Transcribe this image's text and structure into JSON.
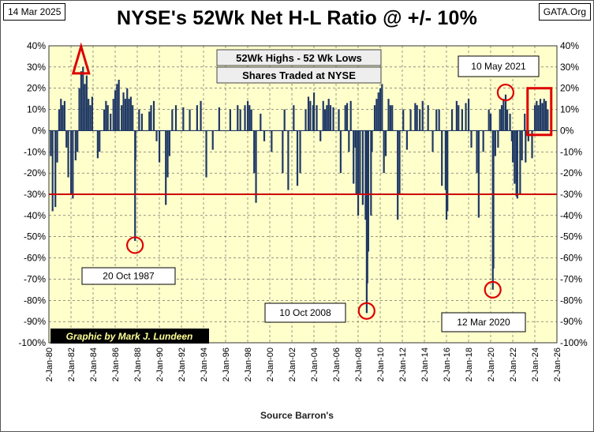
{
  "header": {
    "date": "14 Mar 2025",
    "title": "NYSE's 52Wk Net H-L Ratio @ +/- 10%",
    "site": "GATA.Org"
  },
  "source": "Source Barron's",
  "colors": {
    "plot_bg": "#ffffcc",
    "bars": "#1f3864",
    "grid": "#555555",
    "reference_line": "#cc0000",
    "highlight": "#dd0000",
    "credit_bg": "#000000",
    "credit_text": "#ffff99"
  },
  "chart_data": {
    "type": "bar",
    "title": "NYSE's 52Wk Net H-L Ratio @ +/- 10%",
    "ylim": [
      -100,
      40
    ],
    "y_ticks": [
      "40%",
      "30%",
      "20%",
      "10%",
      "0%",
      "-10%",
      "-20%",
      "-30%",
      "-40%",
      "-50%",
      "-60%",
      "-70%",
      "-80%",
      "-90%",
      "-100%"
    ],
    "xlim": [
      "1980-01-02",
      "2026-01-02"
    ],
    "x_ticks": [
      "2-Jan-80",
      "2-Jan-82",
      "2-Jan-84",
      "2-Jan-86",
      "2-Jan-88",
      "2-Jan-90",
      "2-Jan-92",
      "2-Jan-94",
      "2-Jan-96",
      "2-Jan-98",
      "2-Jan-00",
      "2-Jan-02",
      "2-Jan-04",
      "2-Jan-06",
      "2-Jan-08",
      "2-Jan-10",
      "2-Jan-12",
      "2-Jan-14",
      "2-Jan-16",
      "2-Jan-18",
      "2-Jan-20",
      "2-Jan-22",
      "2-Jan-24",
      "2-Jan-26"
    ],
    "grid": true,
    "legend": [
      "52Wk Highs - 52 Wk Lows",
      "Shares Traded at NYSE"
    ],
    "reference_line": -30,
    "series": [
      {
        "points": [
          [
            "1980-03-01",
            -12
          ],
          [
            "1980-05-01",
            -38
          ],
          [
            "1980-08-01",
            -36
          ],
          [
            "1980-10-01",
            -15
          ],
          [
            "1980-12-01",
            10
          ],
          [
            "1981-02-01",
            15
          ],
          [
            "1981-04-01",
            12
          ],
          [
            "1981-06-01",
            14
          ],
          [
            "1981-08-01",
            -8
          ],
          [
            "1981-10-01",
            -22
          ],
          [
            "1982-01-01",
            -30
          ],
          [
            "1982-03-01",
            -32
          ],
          [
            "1982-06-01",
            -14
          ],
          [
            "1982-08-01",
            -10
          ],
          [
            "1982-10-01",
            20
          ],
          [
            "1982-12-01",
            28
          ],
          [
            "1983-02-01",
            30
          ],
          [
            "1983-04-01",
            22
          ],
          [
            "1983-06-01",
            26
          ],
          [
            "1983-08-01",
            15
          ],
          [
            "1983-10-01",
            12
          ],
          [
            "1983-12-01",
            16
          ],
          [
            "1984-06-01",
            -13
          ],
          [
            "1984-08-01",
            -10
          ],
          [
            "1985-01-01",
            10
          ],
          [
            "1985-03-01",
            14
          ],
          [
            "1985-05-01",
            12
          ],
          [
            "1985-08-01",
            8
          ],
          [
            "1985-11-01",
            15
          ],
          [
            "1986-01-01",
            19
          ],
          [
            "1986-03-01",
            22
          ],
          [
            "1986-05-01",
            24
          ],
          [
            "1986-08-01",
            12
          ],
          [
            "1986-10-01",
            18
          ],
          [
            "1986-12-01",
            15
          ],
          [
            "1987-02-01",
            20
          ],
          [
            "1987-04-01",
            15
          ],
          [
            "1987-06-01",
            16
          ],
          [
            "1987-08-01",
            12
          ],
          [
            "1987-10-19",
            -52
          ],
          [
            "1987-11-01",
            -14
          ],
          [
            "1988-03-01",
            10
          ],
          [
            "1988-06-01",
            8
          ],
          [
            "1989-02-01",
            9
          ],
          [
            "1989-04-01",
            12
          ],
          [
            "1989-07-01",
            14
          ],
          [
            "1989-10-01",
            -5
          ],
          [
            "1990-01-01",
            -15
          ],
          [
            "1990-08-01",
            -35
          ],
          [
            "1990-10-01",
            -22
          ],
          [
            "1990-12-01",
            -12
          ],
          [
            "1991-03-01",
            10
          ],
          [
            "1991-07-01",
            12
          ],
          [
            "1992-03-01",
            11
          ],
          [
            "1992-10-01",
            10
          ],
          [
            "1993-06-01",
            12
          ],
          [
            "1993-10-01",
            14
          ],
          [
            "1994-04-01",
            -22
          ],
          [
            "1994-11-01",
            -9
          ],
          [
            "1995-06-01",
            11
          ],
          [
            "1996-06-01",
            10
          ],
          [
            "1997-02-01",
            12
          ],
          [
            "1997-05-01",
            10
          ],
          [
            "1997-10-01",
            12
          ],
          [
            "1998-01-01",
            14
          ],
          [
            "1998-03-01",
            12
          ],
          [
            "1998-05-01",
            10
          ],
          [
            "1998-08-01",
            -20
          ],
          [
            "1998-10-01",
            -34
          ],
          [
            "1999-03-01",
            8
          ],
          [
            "1999-07-01",
            -5
          ],
          [
            "2000-03-01",
            -10
          ],
          [
            "2001-03-01",
            -20
          ],
          [
            "2001-05-01",
            10
          ],
          [
            "2001-09-01",
            -28
          ],
          [
            "2002-03-01",
            12
          ],
          [
            "2002-07-01",
            -26
          ],
          [
            "2002-10-01",
            -20
          ],
          [
            "2003-04-01",
            10
          ],
          [
            "2003-07-01",
            16
          ],
          [
            "2003-09-01",
            14
          ],
          [
            "2003-12-01",
            12
          ],
          [
            "2004-01-01",
            18
          ],
          [
            "2004-04-01",
            12
          ],
          [
            "2004-08-01",
            -5
          ],
          [
            "2004-11-01",
            14
          ],
          [
            "2005-01-01",
            10
          ],
          [
            "2005-03-01",
            12
          ],
          [
            "2005-05-01",
            15
          ],
          [
            "2005-07-01",
            12
          ],
          [
            "2005-10-01",
            11
          ],
          [
            "2006-04-01",
            10
          ],
          [
            "2006-06-01",
            -20
          ],
          [
            "2006-11-01",
            12
          ],
          [
            "2007-01-01",
            13
          ],
          [
            "2007-03-01",
            -10
          ],
          [
            "2007-05-01",
            14
          ],
          [
            "2007-08-01",
            -25
          ],
          [
            "2007-10-01",
            -8
          ],
          [
            "2007-11-01",
            -30
          ],
          [
            "2008-01-01",
            -40
          ],
          [
            "2008-03-01",
            -30
          ],
          [
            "2008-06-01",
            -35
          ],
          [
            "2008-09-01",
            -42
          ],
          [
            "2008-10-10",
            -86
          ],
          [
            "2008-11-01",
            -72
          ],
          [
            "2008-12-01",
            -57
          ],
          [
            "2009-03-01",
            -40
          ],
          [
            "2009-04-01",
            -10
          ],
          [
            "2009-07-01",
            12
          ],
          [
            "2009-09-01",
            15
          ],
          [
            "2009-11-01",
            18
          ],
          [
            "2010-01-01",
            20
          ],
          [
            "2010-03-01",
            22
          ],
          [
            "2010-05-01",
            -20
          ],
          [
            "2010-07-01",
            -12
          ],
          [
            "2010-10-01",
            15
          ],
          [
            "2010-12-01",
            12
          ],
          [
            "2011-02-01",
            12
          ],
          [
            "2011-08-01",
            -42
          ],
          [
            "2011-10-01",
            -30
          ],
          [
            "2012-02-01",
            10
          ],
          [
            "2012-06-01",
            -9
          ],
          [
            "2012-10-01",
            10
          ],
          [
            "2013-03-01",
            13
          ],
          [
            "2013-05-01",
            12
          ],
          [
            "2013-08-01",
            10
          ],
          [
            "2013-11-01",
            14
          ],
          [
            "2014-05-01",
            12
          ],
          [
            "2014-10-01",
            -10
          ],
          [
            "2015-02-01",
            10
          ],
          [
            "2015-05-01",
            10
          ],
          [
            "2015-08-01",
            -26
          ],
          [
            "2015-12-01",
            -28
          ],
          [
            "2016-01-01",
            -42
          ],
          [
            "2016-02-01",
            -38
          ],
          [
            "2016-07-01",
            10
          ],
          [
            "2016-12-01",
            14
          ],
          [
            "2017-02-01",
            12
          ],
          [
            "2017-06-01",
            10
          ],
          [
            "2017-10-01",
            13
          ],
          [
            "2018-01-01",
            15
          ],
          [
            "2018-04-01",
            -8
          ],
          [
            "2018-10-01",
            -20
          ],
          [
            "2018-12-01",
            -41
          ],
          [
            "2019-05-01",
            -10
          ],
          [
            "2019-11-01",
            10
          ],
          [
            "2020-01-01",
            8
          ],
          [
            "2020-03-12",
            -75
          ],
          [
            "2020-04-01",
            -65
          ],
          [
            "2020-06-01",
            -12
          ],
          [
            "2020-09-01",
            -8
          ],
          [
            "2020-11-01",
            10
          ],
          [
            "2021-01-01",
            12
          ],
          [
            "2021-03-01",
            15
          ],
          [
            "2021-05-10",
            17
          ],
          [
            "2021-07-01",
            10
          ],
          [
            "2021-10-01",
            8
          ],
          [
            "2021-12-01",
            -5
          ],
          [
            "2022-01-01",
            -15
          ],
          [
            "2022-03-01",
            -25
          ],
          [
            "2022-05-01",
            -31
          ],
          [
            "2022-06-01",
            -32
          ],
          [
            "2022-09-01",
            -30
          ],
          [
            "2022-11-01",
            -14
          ],
          [
            "2023-02-01",
            8
          ],
          [
            "2023-03-01",
            -15
          ],
          [
            "2023-06-01",
            -5
          ],
          [
            "2023-10-01",
            -13
          ],
          [
            "2024-01-01",
            12
          ],
          [
            "2024-03-01",
            14
          ],
          [
            "2024-05-01",
            12
          ],
          [
            "2024-07-01",
            15
          ],
          [
            "2024-09-01",
            13
          ],
          [
            "2024-11-01",
            15
          ],
          [
            "2025-01-01",
            14
          ],
          [
            "2025-03-01",
            10
          ]
        ]
      }
    ],
    "annotations": [
      {
        "text": "20 Oct 1987",
        "date": "1987-10-19",
        "value": -54
      },
      {
        "text": "10 Oct 2008",
        "date": "2008-10-10",
        "value": -85
      },
      {
        "text": "12 Mar 2020",
        "date": "2020-03-12",
        "value": -75
      },
      {
        "text": "10 May 2021",
        "date": "2021-05-10",
        "value": 18
      },
      {
        "text": "",
        "date": "1982-12-01",
        "value": 30,
        "shape": "triangle"
      },
      {
        "text": "",
        "date": "2024-06-01",
        "value": 8,
        "shape": "rectangle"
      }
    ],
    "credit": "Graphic by Mark J. Lundeen"
  }
}
